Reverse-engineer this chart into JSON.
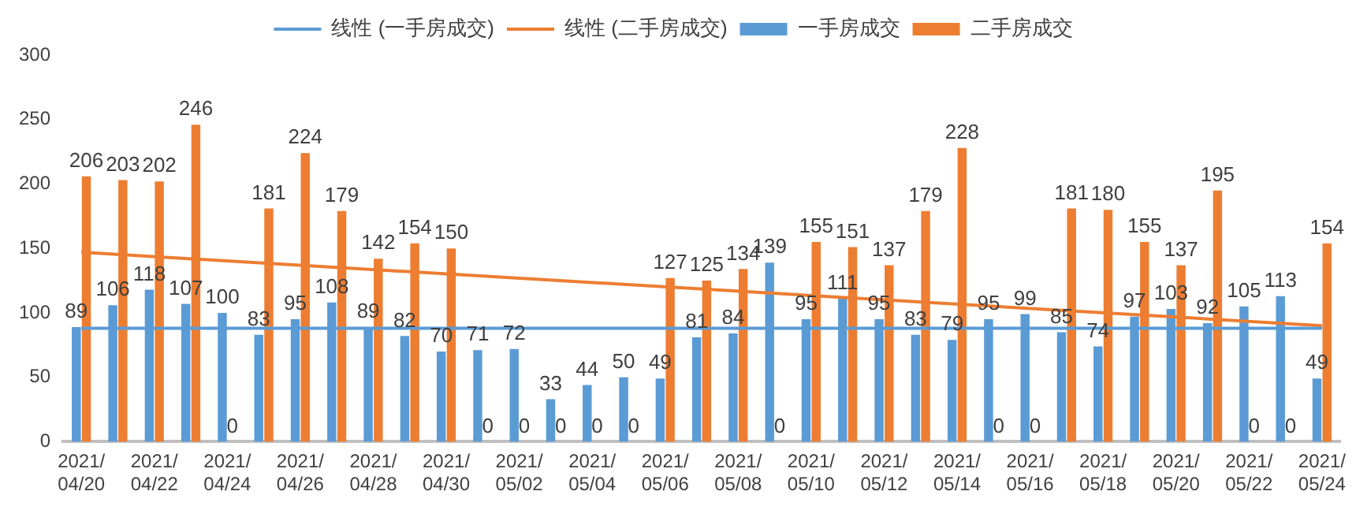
{
  "chart_data": {
    "type": "bar",
    "categories": [
      "2021/04/20",
      null,
      "2021/04/22",
      null,
      "2021/04/24",
      null,
      "2021/04/26",
      null,
      "2021/04/28",
      null,
      "2021/04/30",
      null,
      "2021/05/02",
      null,
      "2021/05/04",
      null,
      "2021/05/06",
      null,
      "2021/05/08",
      null,
      "2021/05/10",
      null,
      "2021/05/12",
      null,
      "2021/05/14",
      null,
      "2021/05/16",
      null,
      "2021/05/18",
      null,
      "2021/05/20",
      null,
      "2021/05/22",
      null,
      "2021/05/24"
    ],
    "series": [
      {
        "name": "一手房成交",
        "color": "#5b9bd5",
        "values": [
          89,
          106,
          118,
          107,
          100,
          83,
          95,
          108,
          89,
          82,
          70,
          71,
          72,
          33,
          44,
          50,
          49,
          81,
          84,
          139,
          95,
          111,
          95,
          83,
          79,
          95,
          99,
          85,
          74,
          97,
          103,
          92,
          105,
          113,
          49
        ],
        "value_labels": [
          "89",
          "106",
          "118",
          "107",
          "100",
          "83",
          "95",
          "108",
          "89",
          "82",
          "70",
          "71",
          "72",
          "33",
          "44",
          "50",
          "49",
          "81",
          "84",
          "139",
          "95",
          "111",
          "95",
          "83",
          "79",
          "95",
          "99",
          "85",
          "74",
          "97",
          "103",
          "92",
          "105",
          "113",
          "49"
        ]
      },
      {
        "name": "二手房成交",
        "color": "#ed7d31",
        "values": [
          206,
          203,
          202,
          246,
          0,
          181,
          224,
          179,
          142,
          154,
          150,
          0,
          0,
          0,
          0,
          0,
          127,
          125,
          134,
          0,
          155,
          151,
          137,
          179,
          228,
          0,
          0,
          181,
          180,
          155,
          137,
          195,
          0,
          0,
          154
        ],
        "value_labels": [
          "206",
          "203",
          "202",
          "246",
          "0",
          "181",
          "224",
          "179",
          "142",
          "154",
          "150",
          "0",
          "0",
          "0",
          "0",
          "0",
          "127",
          "125",
          "134",
          "0",
          "155",
          "151",
          "137",
          "179",
          "228",
          "0",
          "0",
          "181",
          "180",
          "155",
          "137",
          "195",
          "0",
          "0",
          "154"
        ]
      },
      {
        "name": "线性 (一手房成交)",
        "type": "line",
        "color": "#5b9bd5",
        "x": [
          "2021/04/20",
          "2021/05/24"
        ],
        "values": [
          88,
          88
        ],
        "marker": "none"
      },
      {
        "name": "线性 (二手房成交)",
        "type": "line",
        "color": "#ed7d31",
        "x": [
          "2021/04/20",
          "2021/05/24"
        ],
        "values": [
          147,
          90
        ],
        "marker": "none"
      }
    ],
    "ylim": [
      0,
      300
    ],
    "yticks": [
      0,
      50,
      100,
      150,
      200,
      250,
      300
    ],
    "grid": false,
    "legend": "top"
  }
}
